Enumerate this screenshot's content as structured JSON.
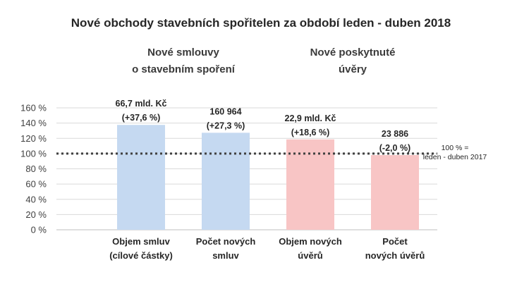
{
  "chart_data": {
    "type": "bar",
    "title": "Nové obchody stavebních spořitelen za období leden - duben 2018",
    "groups": [
      {
        "lines": [
          "Nové smlouvy",
          "o stavebním spoření"
        ],
        "color": "#c5d9f1"
      },
      {
        "lines": [
          "Nové poskytnuté",
          "úvěry"
        ],
        "color": "#f8c5c5"
      }
    ],
    "categories": [
      {
        "lines": [
          "Objem smluv",
          "(cílové částky)"
        ],
        "group": 0
      },
      {
        "lines": [
          "Počet  nových",
          "smluv"
        ],
        "group": 0
      },
      {
        "lines": [
          "Objem nových",
          "úvěrů"
        ],
        "group": 1
      },
      {
        "lines": [
          "Počet",
          "nových úvěrů"
        ],
        "group": 1
      }
    ],
    "values": [
      137.6,
      127.3,
      118.6,
      98.0
    ],
    "data_labels": [
      [
        "66,7 mld. Kč",
        "(+37,6 %)"
      ],
      [
        "160 964",
        "(+27,3 %)"
      ],
      [
        "22,9 mld. Kč",
        "(+18,6 %)"
      ],
      [
        "23 886",
        "(-2,0 %)"
      ]
    ],
    "yticks": [
      "0 %",
      "20 %",
      "40 %",
      "60 %",
      "80 %",
      "100 %",
      "120 %",
      "140 %",
      "160 %"
    ],
    "ylim": [
      0,
      160
    ],
    "grid": true,
    "reference_line": {
      "value": 100,
      "label_lines": [
        "100 % =",
        "leden - duben 2017"
      ]
    }
  }
}
